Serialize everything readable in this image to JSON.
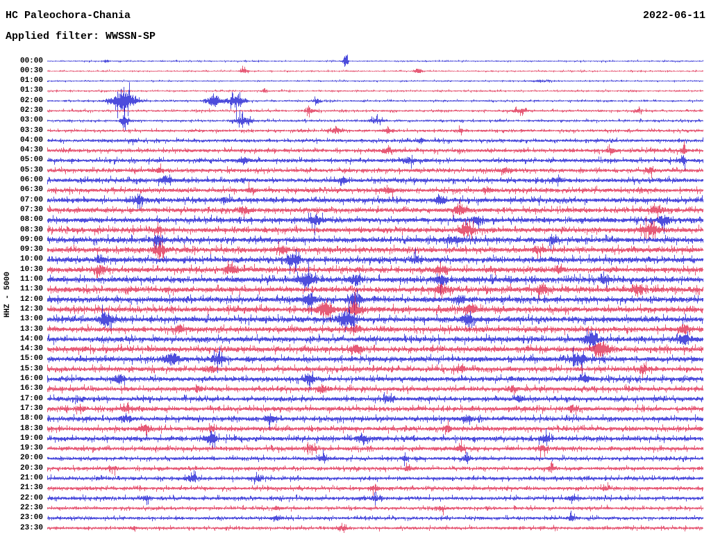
{
  "header": {
    "station_title": "HC Paleochora-Chania",
    "date": "2022-06-11",
    "filter_label": "Applied filter: WWSSN-SP"
  },
  "axis": {
    "y_label": "HHZ - 5000"
  },
  "chart_data": {
    "type": "line",
    "subtype": "seismogram-helicorder",
    "title": "HC Paleochora-Chania",
    "date": "2022-06-11",
    "filter": "WWSSN-SP",
    "channel_scale": "HHZ - 5000",
    "minutes_per_row": 30,
    "legend_position": "none",
    "grid": false,
    "colors": {
      "blue": "#0000cd",
      "red": "#dc143c"
    },
    "rows": [
      {
        "t": "00:00",
        "amp": 1.2,
        "ev": [
          [
            0.455,
            0.003,
            16
          ],
          [
            0.09,
            0.004,
            3
          ]
        ]
      },
      {
        "t": "00:30",
        "amp": 1.2,
        "ev": [
          [
            0.3,
            0.006,
            4
          ],
          [
            0.565,
            0.006,
            5
          ]
        ]
      },
      {
        "t": "01:00",
        "amp": 1.2,
        "ev": [
          [
            0.75,
            0.01,
            2
          ]
        ]
      },
      {
        "t": "01:30",
        "amp": 1.4,
        "ev": [
          [
            0.33,
            0.004,
            3
          ]
        ]
      },
      {
        "t": "02:00",
        "amp": 1.6,
        "ev": [
          [
            0.115,
            0.018,
            18
          ],
          [
            0.253,
            0.01,
            11
          ],
          [
            0.287,
            0.012,
            13
          ],
          [
            0.41,
            0.005,
            5
          ]
        ]
      },
      {
        "t": "02:30",
        "amp": 1.8,
        "ev": [
          [
            0.4,
            0.008,
            4
          ],
          [
            0.72,
            0.01,
            4
          ],
          [
            0.9,
            0.006,
            3
          ]
        ]
      },
      {
        "t": "03:00",
        "amp": 1.8,
        "ev": [
          [
            0.118,
            0.006,
            14
          ],
          [
            0.298,
            0.012,
            8
          ],
          [
            0.5,
            0.01,
            4
          ]
        ]
      },
      {
        "t": "03:30",
        "amp": 2.2,
        "ev": [
          [
            0.44,
            0.008,
            5
          ],
          [
            0.52,
            0.006,
            4
          ],
          [
            0.63,
            0.005,
            4
          ]
        ]
      },
      {
        "t": "04:00",
        "amp": 2.6,
        "ev": [
          [
            0.13,
            0.006,
            4
          ],
          [
            0.57,
            0.005,
            4
          ]
        ]
      },
      {
        "t": "04:30",
        "amp": 3.0,
        "ev": [
          [
            0.52,
            0.008,
            5
          ],
          [
            0.86,
            0.006,
            4
          ],
          [
            0.97,
            0.005,
            6
          ]
        ]
      },
      {
        "t": "05:00",
        "amp": 3.2,
        "ev": [
          [
            0.3,
            0.008,
            5
          ],
          [
            0.55,
            0.008,
            6
          ],
          [
            0.97,
            0.006,
            7
          ]
        ]
      },
      {
        "t": "05:30",
        "amp": 3.2,
        "ev": [
          [
            0.17,
            0.006,
            4
          ],
          [
            0.7,
            0.008,
            4
          ],
          [
            0.92,
            0.006,
            5
          ]
        ]
      },
      {
        "t": "06:00",
        "amp": 3.6,
        "ev": [
          [
            0.18,
            0.008,
            6
          ],
          [
            0.45,
            0.006,
            4
          ],
          [
            0.78,
            0.006,
            4
          ]
        ]
      },
      {
        "t": "06:30",
        "amp": 3.6,
        "ev": [
          [
            0.52,
            0.008,
            6
          ],
          [
            0.31,
            0.006,
            4
          ],
          [
            0.67,
            0.005,
            4
          ]
        ]
      },
      {
        "t": "07:00",
        "amp": 4.0,
        "ev": [
          [
            0.14,
            0.008,
            7
          ],
          [
            0.6,
            0.008,
            7
          ],
          [
            0.27,
            0.006,
            5
          ]
        ]
      },
      {
        "t": "07:30",
        "amp": 4.0,
        "ev": [
          [
            0.3,
            0.008,
            6
          ],
          [
            0.63,
            0.01,
            8
          ],
          [
            0.93,
            0.008,
            8
          ]
        ]
      },
      {
        "t": "08:00",
        "amp": 4.2,
        "ev": [
          [
            0.41,
            0.01,
            9
          ],
          [
            0.655,
            0.008,
            9
          ],
          [
            0.94,
            0.008,
            9
          ]
        ]
      },
      {
        "t": "08:30",
        "amp": 4.2,
        "ev": [
          [
            0.64,
            0.01,
            11
          ],
          [
            0.17,
            0.006,
            5
          ],
          [
            0.92,
            0.012,
            10
          ]
        ]
      },
      {
        "t": "09:00",
        "amp": 4.4,
        "ev": [
          [
            0.17,
            0.008,
            8
          ],
          [
            0.77,
            0.008,
            6
          ],
          [
            0.62,
            0.01,
            6
          ]
        ]
      },
      {
        "t": "09:30",
        "amp": 4.4,
        "ev": [
          [
            0.17,
            0.01,
            9
          ],
          [
            0.36,
            0.008,
            6
          ],
          [
            0.75,
            0.008,
            6
          ]
        ]
      },
      {
        "t": "10:00",
        "amp": 4.4,
        "ev": [
          [
            0.375,
            0.01,
            11
          ],
          [
            0.56,
            0.008,
            6
          ],
          [
            0.08,
            0.006,
            6
          ]
        ]
      },
      {
        "t": "10:30",
        "amp": 4.4,
        "ev": [
          [
            0.08,
            0.008,
            8
          ],
          [
            0.28,
            0.008,
            8
          ],
          [
            0.6,
            0.008,
            6
          ],
          [
            0.78,
            0.008,
            6
          ]
        ]
      },
      {
        "t": "11:00",
        "amp": 4.6,
        "ev": [
          [
            0.395,
            0.012,
            14
          ],
          [
            0.47,
            0.008,
            9
          ],
          [
            0.6,
            0.008,
            8
          ],
          [
            0.85,
            0.006,
            6
          ]
        ]
      },
      {
        "t": "11:30",
        "amp": 4.6,
        "ev": [
          [
            0.6,
            0.01,
            9
          ],
          [
            0.755,
            0.008,
            8
          ],
          [
            0.9,
            0.008,
            6
          ]
        ]
      },
      {
        "t": "12:00",
        "amp": 4.6,
        "ev": [
          [
            0.4,
            0.01,
            9
          ],
          [
            0.47,
            0.01,
            11
          ],
          [
            0.63,
            0.008,
            7
          ]
        ]
      },
      {
        "t": "12:30",
        "amp": 4.6,
        "ev": [
          [
            0.425,
            0.012,
            14
          ],
          [
            0.47,
            0.01,
            12
          ],
          [
            0.645,
            0.008,
            8
          ]
        ]
      },
      {
        "t": "13:00",
        "amp": 4.6,
        "ev": [
          [
            0.09,
            0.01,
            12
          ],
          [
            0.455,
            0.012,
            15
          ],
          [
            0.64,
            0.008,
            9
          ]
        ]
      },
      {
        "t": "13:30",
        "amp": 4.4,
        "ev": [
          [
            0.2,
            0.008,
            6
          ],
          [
            0.47,
            0.008,
            8
          ],
          [
            0.97,
            0.008,
            8
          ]
        ]
      },
      {
        "t": "14:00",
        "amp": 4.4,
        "ev": [
          [
            0.83,
            0.01,
            12
          ],
          [
            0.97,
            0.008,
            11
          ]
        ]
      },
      {
        "t": "14:30",
        "amp": 4.4,
        "ev": [
          [
            0.47,
            0.008,
            8
          ],
          [
            0.845,
            0.012,
            14
          ]
        ]
      },
      {
        "t": "15:00",
        "amp": 4.4,
        "ev": [
          [
            0.19,
            0.01,
            11
          ],
          [
            0.26,
            0.01,
            9
          ],
          [
            0.81,
            0.01,
            12
          ]
        ]
      },
      {
        "t": "15:30",
        "amp": 4.0,
        "ev": [
          [
            0.25,
            0.008,
            6
          ],
          [
            0.63,
            0.008,
            6
          ],
          [
            0.91,
            0.006,
            5
          ]
        ]
      },
      {
        "t": "16:00",
        "amp": 4.0,
        "ev": [
          [
            0.11,
            0.008,
            8
          ],
          [
            0.4,
            0.008,
            8
          ],
          [
            0.82,
            0.006,
            6
          ]
        ]
      },
      {
        "t": "16:30",
        "amp": 3.8,
        "ev": [
          [
            0.42,
            0.008,
            6
          ],
          [
            0.23,
            0.006,
            5
          ],
          [
            0.71,
            0.006,
            5
          ]
        ]
      },
      {
        "t": "17:00",
        "amp": 3.8,
        "ev": [
          [
            0.52,
            0.008,
            6
          ],
          [
            0.72,
            0.006,
            5
          ],
          [
            0.05,
            0.005,
            4
          ]
        ]
      },
      {
        "t": "17:30",
        "amp": 3.8,
        "ev": [
          [
            0.05,
            0.006,
            6
          ],
          [
            0.12,
            0.006,
            5
          ],
          [
            0.8,
            0.006,
            5
          ]
        ]
      },
      {
        "t": "18:00",
        "amp": 3.8,
        "ev": [
          [
            0.12,
            0.008,
            6
          ],
          [
            0.34,
            0.008,
            6
          ],
          [
            0.64,
            0.008,
            6
          ]
        ]
      },
      {
        "t": "18:30",
        "amp": 3.8,
        "ev": [
          [
            0.15,
            0.008,
            6
          ],
          [
            0.25,
            0.006,
            5
          ],
          [
            0.61,
            0.006,
            5
          ]
        ]
      },
      {
        "t": "19:00",
        "amp": 3.8,
        "ev": [
          [
            0.25,
            0.008,
            8
          ],
          [
            0.48,
            0.008,
            6
          ],
          [
            0.76,
            0.008,
            6
          ]
        ]
      },
      {
        "t": "19:30",
        "amp": 3.4,
        "ev": [
          [
            0.4,
            0.008,
            6
          ],
          [
            0.63,
            0.006,
            5
          ],
          [
            0.755,
            0.006,
            6
          ]
        ]
      },
      {
        "t": "20:00",
        "amp": 3.0,
        "ev": [
          [
            0.42,
            0.006,
            5
          ],
          [
            0.545,
            0.005,
            4
          ],
          [
            0.64,
            0.006,
            5
          ]
        ]
      },
      {
        "t": "20:30",
        "amp": 3.0,
        "ev": [
          [
            0.1,
            0.006,
            4
          ],
          [
            0.55,
            0.006,
            4
          ],
          [
            0.77,
            0.005,
            4
          ]
        ]
      },
      {
        "t": "21:00",
        "amp": 3.0,
        "ev": [
          [
            0.22,
            0.008,
            6
          ],
          [
            0.32,
            0.006,
            5
          ]
        ]
      },
      {
        "t": "21:30",
        "amp": 3.0,
        "ev": [
          [
            0.5,
            0.006,
            4
          ],
          [
            0.85,
            0.005,
            4
          ]
        ]
      },
      {
        "t": "22:00",
        "amp": 3.0,
        "ev": [
          [
            0.15,
            0.006,
            5
          ],
          [
            0.5,
            0.006,
            4
          ],
          [
            0.8,
            0.006,
            5
          ]
        ]
      },
      {
        "t": "22:30",
        "amp": 2.6,
        "ev": [
          [
            0.6,
            0.006,
            4
          ],
          [
            0.35,
            0.005,
            3
          ]
        ]
      },
      {
        "t": "23:00",
        "amp": 2.6,
        "ev": [
          [
            0.35,
            0.006,
            4
          ],
          [
            0.8,
            0.006,
            5
          ]
        ]
      },
      {
        "t": "23:30",
        "amp": 2.6,
        "ev": [
          [
            0.45,
            0.006,
            4
          ],
          [
            0.13,
            0.005,
            3
          ]
        ]
      }
    ]
  }
}
